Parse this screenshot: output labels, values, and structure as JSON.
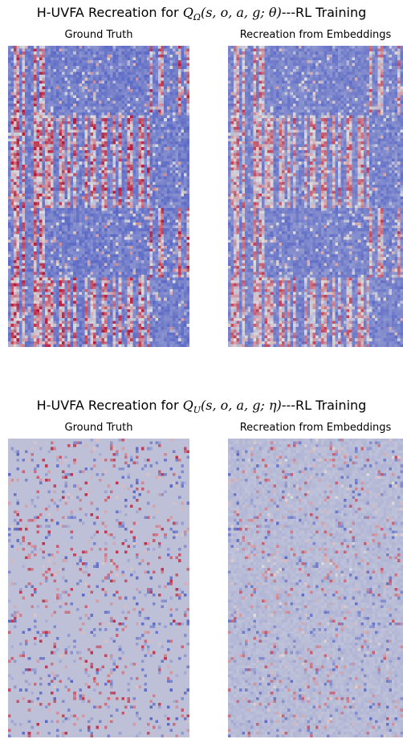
{
  "figures": [
    {
      "title_prefix": "H-UVFA Recreation for ",
      "title_math": "Q",
      "title_sub": "Ω",
      "title_args": "(s, o, a, g; θ)",
      "title_suffix": "---RL Training",
      "left_title": "Ground Truth",
      "right_title": "Recreation from Embeddings"
    },
    {
      "title_prefix": "H-UVFA Recreation for ",
      "title_math": "Q",
      "title_sub": "U",
      "title_args": "(s, o, a, g; η)",
      "title_suffix": "---RL Training",
      "left_title": "Ground Truth",
      "right_title": "Recreation from Embeddings"
    }
  ],
  "colormap": {
    "name": "coolwarm",
    "low": "#3b4cc0",
    "mid": "#dddddd",
    "high": "#b40426",
    "background": "#c6d6f3"
  },
  "chart_data": [
    {
      "type": "heatmap",
      "title": "H-UVFA Recreation for Q_Ω(s, o, a, g; θ)---RL Training",
      "panels": [
        "Ground Truth",
        "Recreation from Embeddings"
      ],
      "colormap": "coolwarm",
      "grid": "64 columns × 104 rows",
      "block_structure": "four horizontal bands of rows; dense red/white vertical stripes alternating with dark blue regions",
      "recreation": "smoothed version of ground truth, lighter blues"
    },
    {
      "type": "heatmap",
      "title": "H-UVFA Recreation for Q_U(s, o, a, g; η)---RL Training",
      "panels": [
        "Ground Truth",
        "Recreation from Embeddings"
      ],
      "colormap": "coolwarm",
      "grid": "64 columns × 104 rows",
      "block_structure": "mostly uniform light blue with sparse red/blue cells",
      "recreation": "nearly identical to ground truth"
    }
  ]
}
